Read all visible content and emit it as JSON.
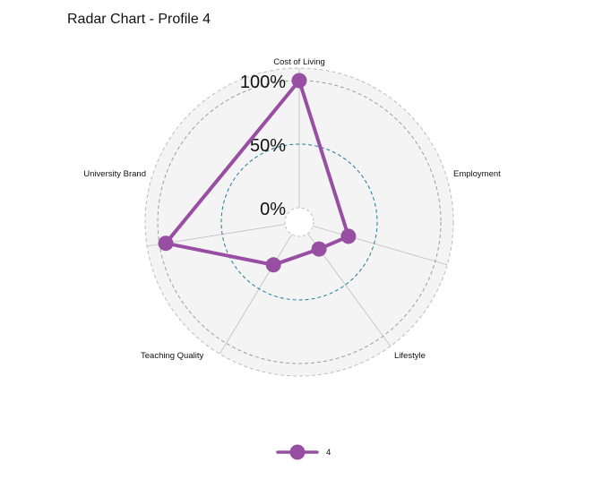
{
  "chart_data": {
    "type": "radar",
    "title": "Radar Chart - Profile 4",
    "axes": [
      "Cost of Living",
      "Employment",
      "Lifestyle",
      "Teaching Quality",
      "University Brand"
    ],
    "series": [
      {
        "name": "4",
        "values": [
          1.0,
          0.29,
          0.15,
          0.28,
          0.95
        ],
        "color": "#984EA3"
      }
    ],
    "radial_ticks": [
      "0%",
      "50%",
      "100%"
    ],
    "radial_range": [
      0,
      1
    ],
    "grid": true,
    "legend_position": "bottom",
    "colors": {
      "panel_fill": "#F4F4F4",
      "outer_circle": "#BDBDBD",
      "mid_circle": "#1F7A9A",
      "spokes": "#BFBFBF"
    }
  }
}
